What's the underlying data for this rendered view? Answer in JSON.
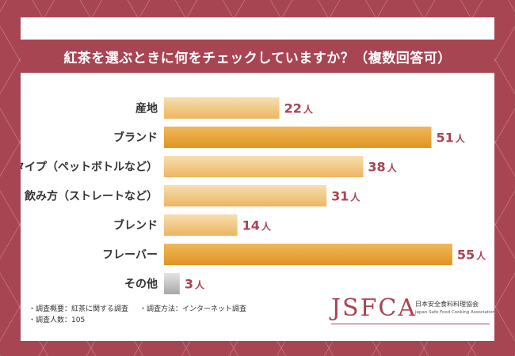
{
  "title": "紅茶を選ぶときに何をチェックしていますか？（複数回答可）",
  "chart_data": {
    "type": "bar",
    "orientation": "horizontal",
    "title": "紅茶を選ぶときに何をチェックしていますか？（複数回答可）",
    "categories": [
      "産地",
      "ブランド",
      "タイプ（ペットボトルなど）",
      "飲み方（ストレートなど）",
      "ブレンド",
      "フレーバー",
      "その他"
    ],
    "values": [
      22,
      51,
      38,
      31,
      14,
      55,
      3
    ],
    "unit": "人",
    "highlight": [
      "ブランド",
      "フレーバー"
    ],
    "xlim": [
      0,
      60
    ],
    "colors": {
      "normal_start": "#f7dfb0",
      "normal_end": "#edb560",
      "highlight_start": "#f0b85a",
      "highlight_end": "#e09422",
      "other_start": "#e4e4e4",
      "other_end": "#a8a8a8",
      "value_text": "#a84552"
    }
  },
  "notes": {
    "outline": "・調査概要：紅茶に関する調査",
    "method": "・調査方法：インターネット調査",
    "count": "・調査人数：105"
  },
  "logo": {
    "main": "JSFCA",
    "jp": "日本安全食料料理協会",
    "en": "Japan Safe Food Cooking Association"
  },
  "colors": {
    "accent": "#a84552",
    "background": "#ffffff"
  }
}
